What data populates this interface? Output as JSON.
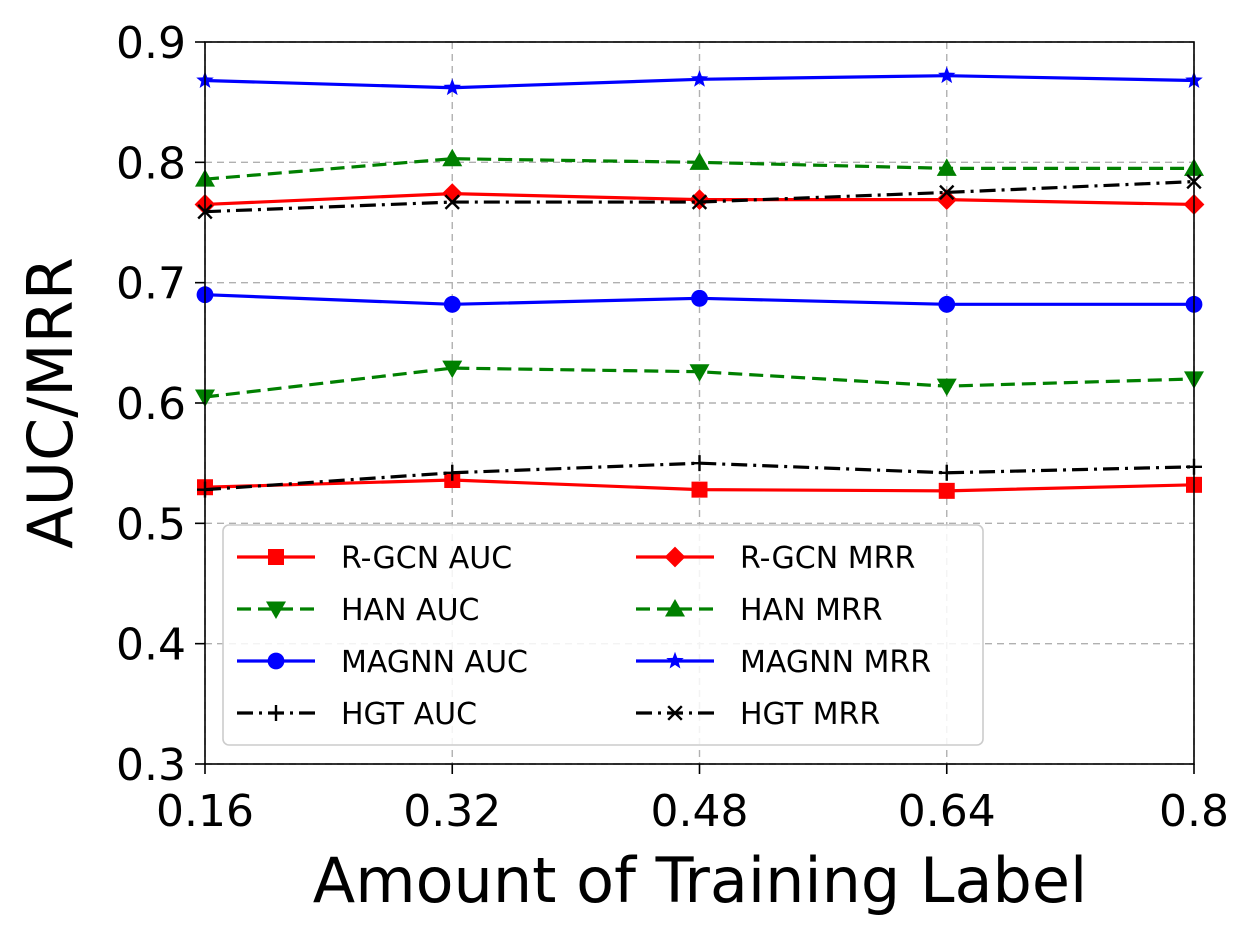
{
  "chart_data": {
    "type": "line",
    "title": "",
    "xlabel": "Amount of Training Label",
    "ylabel": "AUC/MRR",
    "x": [
      0.16,
      0.32,
      0.48,
      0.64,
      0.8
    ],
    "x_tick_labels": [
      "0.16",
      "0.32",
      "0.48",
      "0.64",
      "0.8"
    ],
    "xlim": [
      0.16,
      0.8
    ],
    "ylim": [
      0.3,
      0.9
    ],
    "y_ticks": [
      0.3,
      0.4,
      0.5,
      0.6,
      0.7,
      0.8,
      0.9
    ],
    "y_tick_labels": [
      "0.3",
      "0.4",
      "0.5",
      "0.6",
      "0.7",
      "0.8",
      "0.9"
    ],
    "grid": true,
    "legend_position": "lower-left",
    "legend_columns": 2,
    "series": [
      {
        "name": "R-GCN AUC",
        "color": "#ff0000",
        "linestyle": "solid",
        "marker": "square",
        "values": [
          0.53,
          0.536,
          0.528,
          0.527,
          0.532
        ]
      },
      {
        "name": "HAN AUC",
        "color": "#008000",
        "linestyle": "dashed",
        "marker": "triangle-down",
        "values": [
          0.605,
          0.629,
          0.626,
          0.614,
          0.62
        ]
      },
      {
        "name": "MAGNN AUC",
        "color": "#0000ff",
        "linestyle": "solid",
        "marker": "circle",
        "values": [
          0.69,
          0.682,
          0.687,
          0.682,
          0.682
        ]
      },
      {
        "name": "HGT AUC",
        "color": "#000000",
        "linestyle": "dashdot",
        "marker": "plus",
        "values": [
          0.528,
          0.542,
          0.55,
          0.542,
          0.547
        ]
      },
      {
        "name": "R-GCN MRR",
        "color": "#ff0000",
        "linestyle": "solid",
        "marker": "diamond",
        "values": [
          0.765,
          0.774,
          0.769,
          0.769,
          0.765
        ]
      },
      {
        "name": "HAN MRR",
        "color": "#008000",
        "linestyle": "dashed",
        "marker": "triangle-up",
        "values": [
          0.786,
          0.803,
          0.8,
          0.795,
          0.795
        ]
      },
      {
        "name": "MAGNN MRR",
        "color": "#0000ff",
        "linestyle": "solid",
        "marker": "star",
        "values": [
          0.868,
          0.862,
          0.869,
          0.872,
          0.868
        ]
      },
      {
        "name": "HGT MRR",
        "color": "#000000",
        "linestyle": "dashdot",
        "marker": "x",
        "values": [
          0.759,
          0.767,
          0.767,
          0.775,
          0.784
        ]
      }
    ]
  }
}
